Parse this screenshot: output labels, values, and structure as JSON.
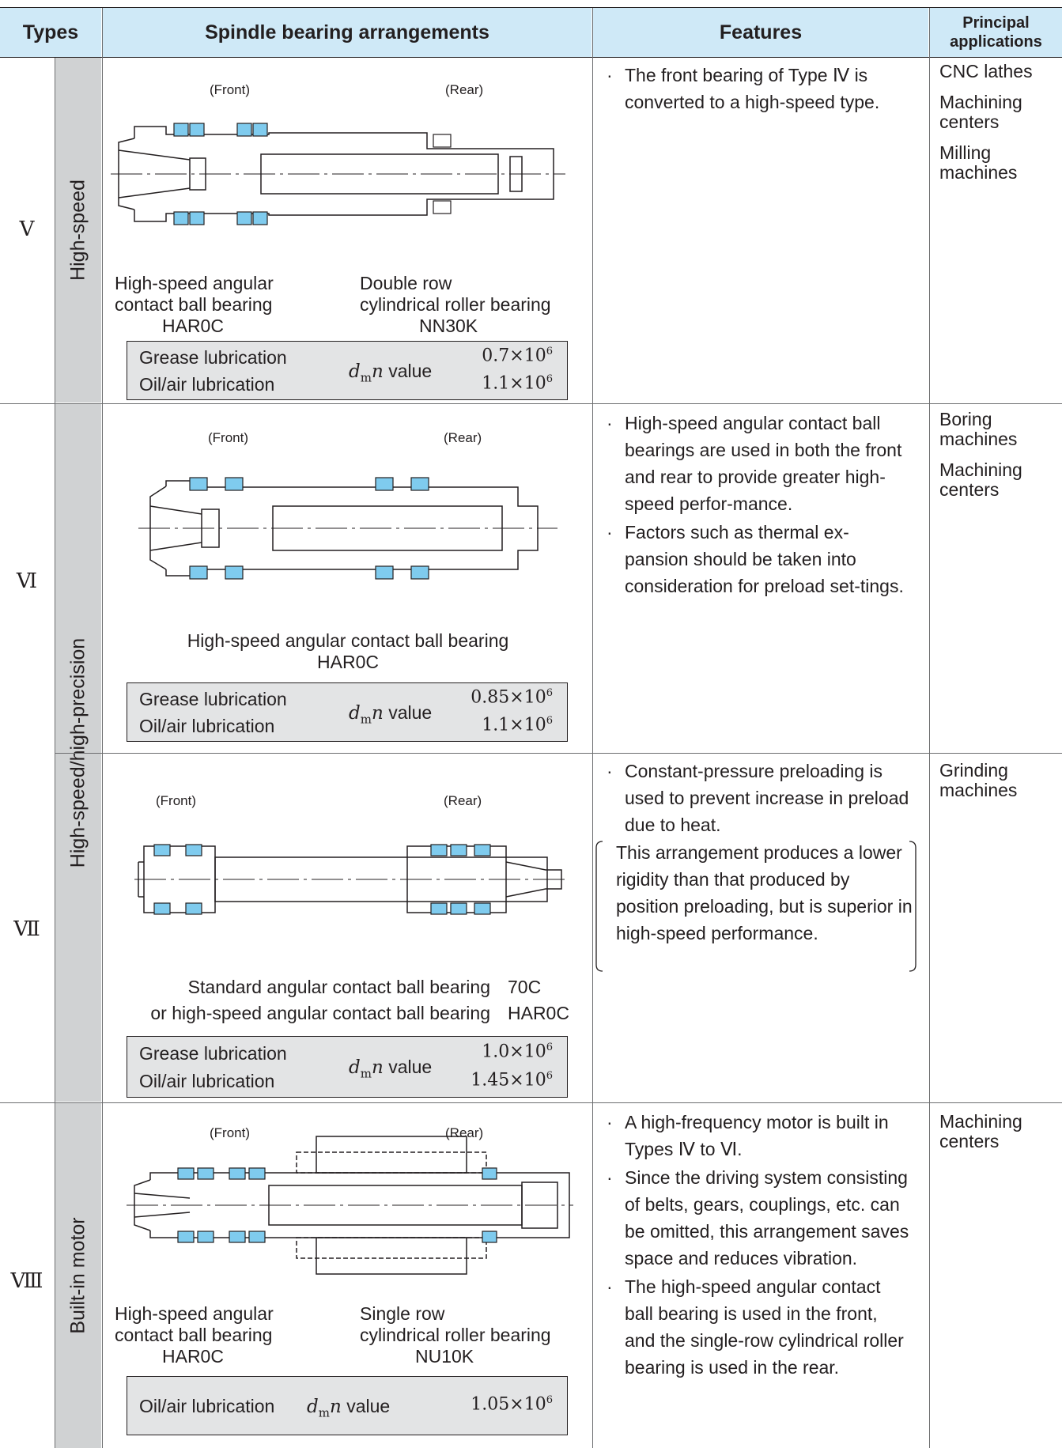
{
  "header": {
    "types": "Types",
    "arrangements": "Spindle bearing arrangements",
    "features": "Features",
    "applications": "Principal applications"
  },
  "categories": {
    "high_speed": "High-speed",
    "high_precision": "High-speed/high-precision",
    "built_in": "Built-in motor"
  },
  "labels": {
    "front": "(Front)",
    "rear": "(Rear)",
    "dmn_value": "value"
  },
  "rows": [
    {
      "type": "Ⅴ",
      "bearing_left": [
        "High-speed angular",
        "contact ball bearing",
        "HAR0C"
      ],
      "bearing_right": [
        "Double row",
        "cylindrical roller bearing",
        "NN30K"
      ],
      "lube": [
        {
          "name": "Grease lubrication",
          "value": "0.7×10",
          "exp": "6"
        },
        {
          "name": "Oil/air lubrication",
          "value": "1.1×10",
          "exp": "6"
        }
      ],
      "features": [
        "The front bearing of Type Ⅳ is converted to a high-speed type."
      ],
      "applications": [
        "CNC lathes",
        "Machining centers",
        "Milling machines"
      ]
    },
    {
      "type": "Ⅵ",
      "bearing_center": [
        "High-speed angular contact ball bearing",
        "HAR0C"
      ],
      "lube": [
        {
          "name": "Grease lubrication",
          "value": "0.85×10",
          "exp": "6"
        },
        {
          "name": "Oil/air lubrication",
          "value": "1.1×10",
          "exp": "6"
        }
      ],
      "features": [
        "High-speed angular contact ball bearings are used in both the front and rear to provide greater high-speed perfor-mance.",
        "Factors such as thermal ex-pansion should be taken into consideration for preload set-tings."
      ],
      "applications": [
        "Boring machines",
        "Machining centers"
      ]
    },
    {
      "type": "Ⅶ",
      "bearing_lines": [
        {
          "text": "Standard angular contact ball bearing",
          "code": "70C"
        },
        {
          "text": "or high-speed angular contact ball bearing",
          "code": "HAR0C"
        }
      ],
      "lube": [
        {
          "name": "Grease lubrication",
          "value": "1.0×10",
          "exp": "6"
        },
        {
          "name": "Oil/air lubrication",
          "value": "1.45×10",
          "exp": "6"
        }
      ],
      "features": [
        "Constant-pressure preloading is used to prevent increase in preload due to heat."
      ],
      "note": "This arrangement produces a lower rigidity than that produced by position preloading, but is superior in high-speed performance.",
      "applications": [
        "Grinding machines"
      ]
    },
    {
      "type": "Ⅷ",
      "bearing_left": [
        "High-speed angular",
        "contact ball bearing",
        "HAR0C"
      ],
      "bearing_right": [
        "Single row",
        "cylindrical roller bearing",
        "NU10K"
      ],
      "lube": [
        {
          "name": "Oil/air lubrication",
          "value": "1.05×10",
          "exp": "6"
        }
      ],
      "features": [
        "A high-frequency motor is built in Types Ⅳ to Ⅵ.",
        "Since the driving system consisting of belts, gears, couplings, etc. can be omitted, this arrangement saves space and reduces vibration.",
        "The high-speed angular contact ball bearing is used in the front, and the single-row cylindrical roller bearing is used in the rear."
      ],
      "applications": [
        "Machining centers"
      ]
    }
  ],
  "colors": {
    "header_bg": "#cfe9f7",
    "category_bg": "#d0d2d3",
    "bearing_blue": "#7fcbee",
    "box_bg": "#e3e4e5"
  }
}
